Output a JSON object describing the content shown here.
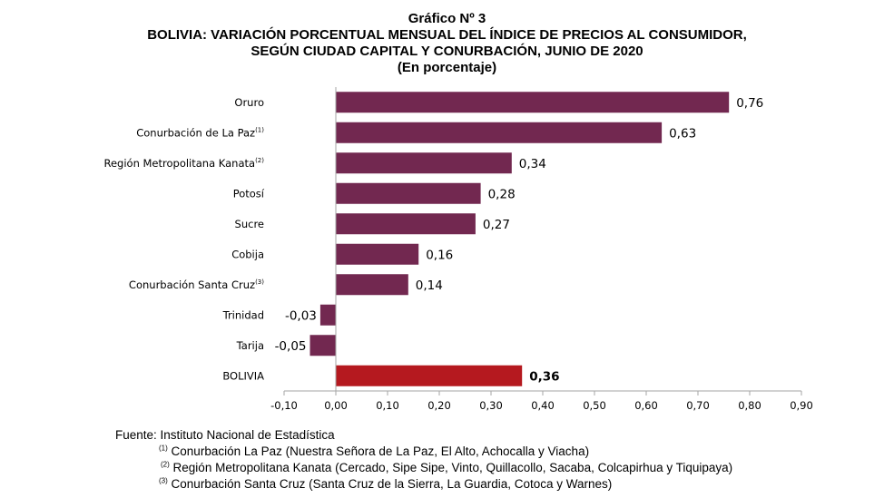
{
  "titles": {
    "line1": "Gráfico Nº 3",
    "line2": "BOLIVIA: VARIACIÓN PORCENTUAL MENSUAL DEL ÍNDICE DE PRECIOS AL CONSUMIDOR,",
    "line3": "SEGÚN CIUDAD CAPITAL Y CONURBACIÓN, JUNIO DE 2020",
    "line4": "(En porcentaje)"
  },
  "colors": {
    "bar": "#722850",
    "highlight": "#b5191f",
    "axis": "#a6a6a6"
  },
  "chart_data": {
    "type": "bar",
    "orientation": "horizontal",
    "categories": [
      {
        "name": "Oruro",
        "sup": ""
      },
      {
        "name": "Conurbación de La Paz",
        "sup": "(1)"
      },
      {
        "name": "Región Metropolitana Kanata",
        "sup": "(2)"
      },
      {
        "name": "Potosí",
        "sup": ""
      },
      {
        "name": "Sucre",
        "sup": ""
      },
      {
        "name": "Cobija",
        "sup": ""
      },
      {
        "name": "Conurbación Santa Cruz",
        "sup": "(3)"
      },
      {
        "name": "Trinidad",
        "sup": ""
      },
      {
        "name": "Tarija",
        "sup": ""
      },
      {
        "name": "BOLIVIA",
        "sup": ""
      }
    ],
    "values": [
      0.76,
      0.63,
      0.34,
      0.28,
      0.27,
      0.16,
      0.14,
      -0.03,
      -0.05,
      0.36
    ],
    "value_labels": [
      "0,76",
      "0,63",
      "0,34",
      "0,28",
      "0,27",
      "0,16",
      "0,14",
      "-0,03",
      "-0,05",
      "0,36"
    ],
    "highlight_index": 9,
    "xlim": [
      -0.1,
      0.9
    ],
    "xticks": [
      -0.1,
      0.0,
      0.1,
      0.2,
      0.3,
      0.4,
      0.5,
      0.6,
      0.7,
      0.8,
      0.9
    ],
    "xtick_labels": [
      "-0,10",
      "0,00",
      "0,10",
      "0,20",
      "0,30",
      "0,40",
      "0,50",
      "0,60",
      "0,70",
      "0,80",
      "0,90"
    ],
    "grid": false,
    "legend": "none",
    "xlabel": "",
    "ylabel": ""
  },
  "footer": {
    "source": "Fuente: Instituto Nacional de Estadística",
    "notes": [
      {
        "sup": "(1)",
        "text": "Conurbación La Paz (Nuestra Señora de La Paz, El Alto, Achocalla y Viacha)"
      },
      {
        "sup": "(2)",
        "text": "Región Metropolitana Kanata (Cercado, Sipe Sipe, Vinto, Quillacollo, Sacaba, Colcapirhua y Tiquipaya)"
      },
      {
        "sup": "(3)",
        "text": "Conurbación Santa Cruz (Santa Cruz de la Sierra, La Guardia, Cotoca y Warnes)"
      }
    ]
  }
}
